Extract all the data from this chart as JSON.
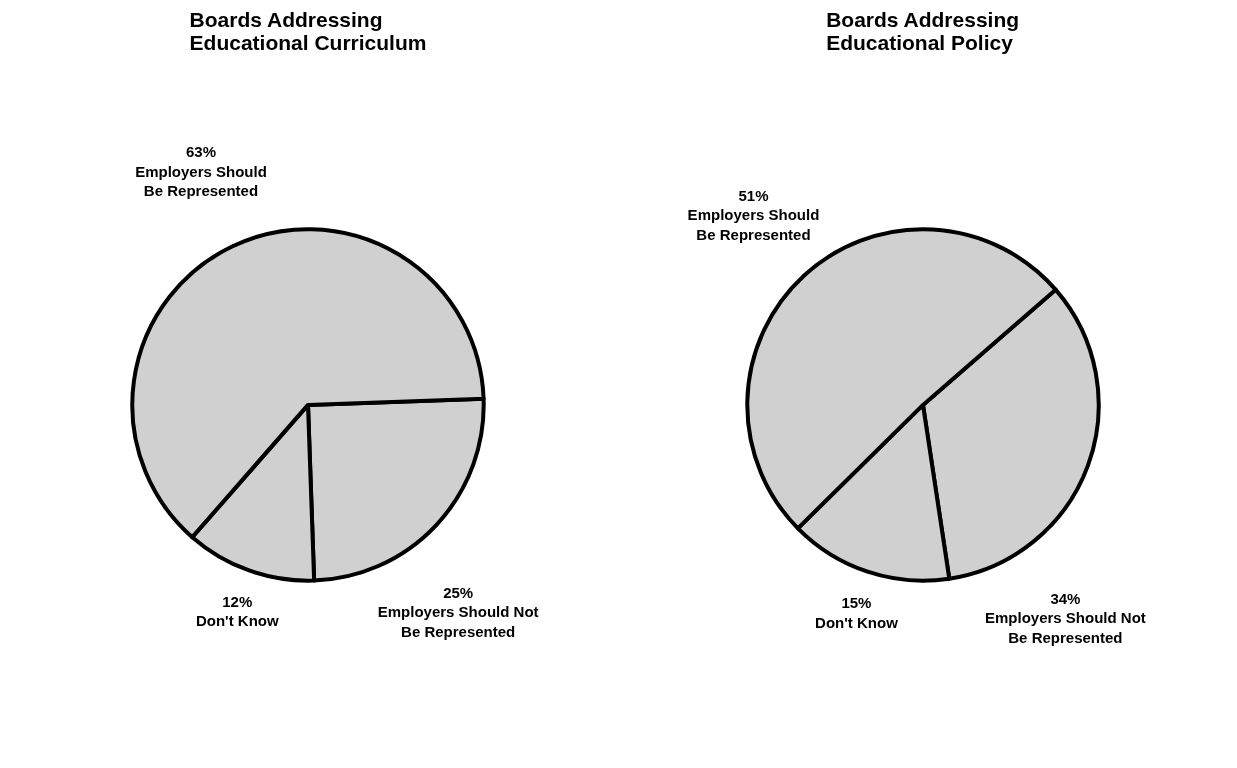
{
  "chart_data": [
    {
      "type": "pie",
      "title": "Boards Addressing\nEducational Curriculum",
      "categories": [
        "Employers Should Not\nBe Represented",
        "Don't Know",
        "Employers Should\nBe Represented"
      ],
      "values": [
        25,
        12,
        63
      ],
      "value_labels": [
        "25%",
        "12%",
        "63%"
      ],
      "colors": [
        "#d0d0d0",
        "#d0d0d0",
        "#d0d0d0"
      ],
      "legend": false
    },
    {
      "type": "pie",
      "title": "Boards Addressing\nEducational Policy",
      "categories": [
        "Employers Should Not\nBe Represented",
        "Don't Know",
        "Employers Should\nBe Represented"
      ],
      "values": [
        34,
        15,
        51
      ],
      "value_labels": [
        "34%",
        "15%",
        "51%"
      ],
      "colors": [
        "#d0d0d0",
        "#d0d0d0",
        "#d0d0d0"
      ],
      "legend": false
    }
  ]
}
